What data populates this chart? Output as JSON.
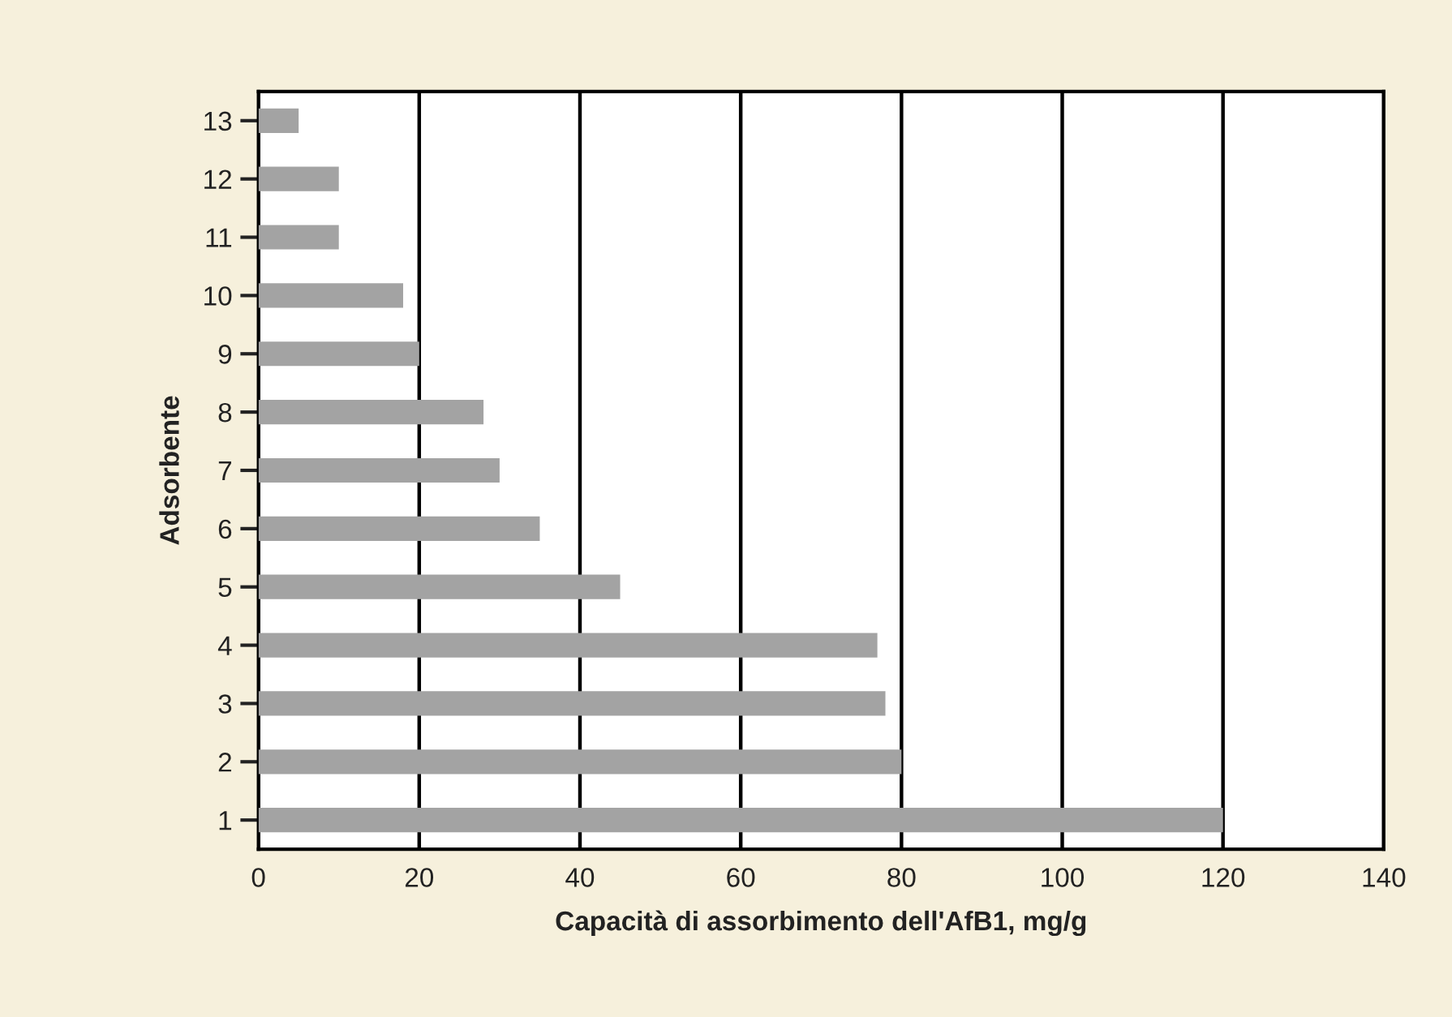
{
  "chart_data": {
    "type": "bar",
    "orientation": "horizontal",
    "xlabel": "Capacità di assorbimento dell'AfB1, mg/g",
    "ylabel": "Adsorbente",
    "categories": [
      "13",
      "12",
      "11",
      "10",
      "9",
      "8",
      "7",
      "6",
      "5",
      "4",
      "3",
      "2",
      "1"
    ],
    "values": [
      5,
      10,
      10,
      18,
      20,
      28,
      30,
      35,
      45,
      77,
      78,
      80,
      120
    ],
    "color": "#a3a3a3",
    "xlim": [
      0,
      140
    ],
    "xticks": [
      0,
      20,
      40,
      60,
      80,
      100,
      120,
      140
    ],
    "grid": "x"
  }
}
